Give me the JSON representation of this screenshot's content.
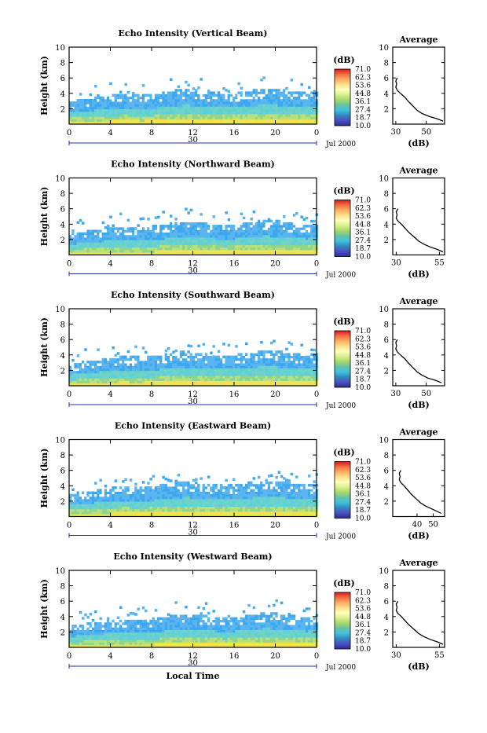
{
  "chart_data": [
    {
      "type": "heatmap",
      "title": "Echo Intensity (Vertical Beam)",
      "ylabel": "Height (km)",
      "x_ticks": [
        "0",
        "4",
        "8",
        "12",
        "16",
        "20",
        "0"
      ],
      "y_ticks": [
        "2",
        "4",
        "6",
        "8",
        "10"
      ],
      "xlim": [
        0,
        24
      ],
      "ylim": [
        0,
        10
      ],
      "date_marker": "30",
      "date_label": "Jul 2000",
      "colorbar": {
        "unit": "(dB)",
        "levels": [
          "71.0",
          "62.3",
          "53.6",
          "44.8",
          "36.1",
          "27.4",
          "18.7",
          "10.0"
        ]
      },
      "cloud_top_km": [
        2.8,
        3.0,
        3.2,
        3.4,
        3.6,
        3.8,
        3.7,
        3.6,
        3.7,
        4.0,
        4.2,
        4.4,
        4.3,
        4.1,
        3.9,
        3.8,
        3.9,
        4.1,
        4.3,
        4.5,
        4.4,
        4.2,
        4.0,
        3.9,
        4.0
      ],
      "average": {
        "title": "Average",
        "xlabel": "(dB)",
        "x_ticks": [
          "30",
          "50"
        ],
        "xlim": [
          28,
          62
        ],
        "profile": {
          "height_km": [
            0.4,
            0.7,
            1.0,
            1.4,
            1.8,
            2.2,
            2.6,
            3.0,
            3.5,
            4.0,
            4.4,
            4.8,
            5.2,
            5.6,
            6.0
          ],
          "db": [
            61,
            57,
            52,
            47,
            44,
            42,
            40,
            38,
            36,
            33,
            31,
            30,
            30.5,
            30,
            31
          ]
        }
      }
    },
    {
      "type": "heatmap",
      "title": "Echo Intensity (Northward Beam)",
      "ylabel": "Height (km)",
      "x_ticks": [
        "0",
        "4",
        "8",
        "12",
        "16",
        "20",
        "0"
      ],
      "y_ticks": [
        "2",
        "4",
        "6",
        "8",
        "10"
      ],
      "xlim": [
        0,
        24
      ],
      "ylim": [
        0,
        10
      ],
      "date_marker": "30",
      "date_label": "Jul 2000",
      "colorbar": {
        "unit": "(dB)",
        "levels": [
          "71.0",
          "62.3",
          "53.6",
          "44.8",
          "36.1",
          "27.4",
          "18.7",
          "10.0"
        ]
      },
      "cloud_top_km": [
        2.6,
        2.8,
        3.0,
        3.2,
        3.4,
        3.6,
        3.5,
        3.5,
        3.6,
        3.8,
        4.0,
        4.2,
        4.1,
        4.0,
        3.8,
        3.7,
        3.8,
        4.0,
        4.2,
        4.4,
        4.3,
        4.1,
        3.9,
        3.8,
        3.9
      ],
      "average": {
        "title": "Average",
        "xlabel": "(dB)",
        "x_ticks": [
          "30",
          "55"
        ],
        "xlim": [
          28,
          58
        ],
        "profile": {
          "height_km": [
            0.4,
            0.7,
            1.0,
            1.4,
            1.8,
            2.2,
            2.6,
            3.0,
            3.5,
            4.0,
            4.4,
            4.8,
            5.2,
            5.6,
            6.0
          ],
          "db": [
            57,
            54,
            50,
            46,
            43,
            41,
            39,
            37,
            35,
            33,
            31,
            30,
            30.5,
            30,
            31
          ]
        }
      }
    },
    {
      "type": "heatmap",
      "title": "Echo Intensity (Southward Beam)",
      "ylabel": "Height (km)",
      "x_ticks": [
        "0",
        "4",
        "8",
        "12",
        "16",
        "20",
        "0"
      ],
      "y_ticks": [
        "2",
        "4",
        "6",
        "8",
        "10"
      ],
      "xlim": [
        0,
        24
      ],
      "ylim": [
        0,
        10
      ],
      "date_marker": "30",
      "date_label": "Jul 2000",
      "colorbar": {
        "unit": "(dB)",
        "levels": [
          "71.0",
          "62.3",
          "53.6",
          "44.8",
          "36.1",
          "27.4",
          "18.7",
          "10.0"
        ]
      },
      "cloud_top_km": [
        2.7,
        2.9,
        3.1,
        3.3,
        3.5,
        3.7,
        3.6,
        3.6,
        3.7,
        3.9,
        4.1,
        4.3,
        4.2,
        4.0,
        3.9,
        3.8,
        3.9,
        4.1,
        4.3,
        4.5,
        4.4,
        4.2,
        4.0,
        3.9,
        4.0
      ],
      "average": {
        "title": "Average",
        "xlabel": "(dB)",
        "x_ticks": [
          "30",
          "50"
        ],
        "xlim": [
          28,
          62
        ],
        "profile": {
          "height_km": [
            0.4,
            0.7,
            1.0,
            1.4,
            1.8,
            2.2,
            2.6,
            3.0,
            3.5,
            4.0,
            4.4,
            4.8,
            5.2,
            5.6,
            6.0
          ],
          "db": [
            60,
            56,
            51,
            47,
            44,
            42,
            40,
            38,
            36,
            33,
            31,
            30,
            30.5,
            30,
            31
          ]
        }
      }
    },
    {
      "type": "heatmap",
      "title": "Echo Intensity (Eastward Beam)",
      "ylabel": "Height (km)",
      "x_ticks": [
        "0",
        "4",
        "8",
        "12",
        "16",
        "20",
        "0"
      ],
      "y_ticks": [
        "2",
        "4",
        "6",
        "8",
        "10"
      ],
      "xlim": [
        0,
        24
      ],
      "ylim": [
        0,
        10
      ],
      "date_marker": "30",
      "date_label": "Jul 2000",
      "colorbar": {
        "unit": "(dB)",
        "levels": [
          "71.0",
          "62.3",
          "53.6",
          "44.8",
          "36.1",
          "27.4",
          "18.7",
          "10.0"
        ]
      },
      "cloud_top_km": [
        2.8,
        3.0,
        3.2,
        3.4,
        3.6,
        3.8,
        3.7,
        3.7,
        3.8,
        4.0,
        4.2,
        4.4,
        4.3,
        4.1,
        4.0,
        3.9,
        4.0,
        4.2,
        4.4,
        4.6,
        4.5,
        4.3,
        4.1,
        4.0,
        4.1
      ],
      "average": {
        "title": "Average",
        "xlabel": "(dB)",
        "x_ticks": [
          "40",
          "50"
        ],
        "xlim": [
          25,
          57
        ],
        "profile": {
          "height_km": [
            0.4,
            0.7,
            1.0,
            1.4,
            1.8,
            2.2,
            2.6,
            3.0,
            3.5,
            4.0,
            4.4,
            4.8,
            5.2,
            5.6,
            6.0
          ],
          "db": [
            55,
            52,
            49,
            45,
            42,
            40,
            38,
            36,
            34,
            32,
            30,
            29,
            29.5,
            29,
            30
          ]
        }
      }
    },
    {
      "type": "heatmap",
      "title": "Echo Intensity (Westward Beam)",
      "ylabel": "Height (km)",
      "xlabel": "Local Time",
      "x_ticks": [
        "0",
        "4",
        "8",
        "12",
        "16",
        "20",
        "0"
      ],
      "y_ticks": [
        "2",
        "4",
        "6",
        "8",
        "10"
      ],
      "xlim": [
        0,
        24
      ],
      "ylim": [
        0,
        10
      ],
      "date_marker": "30",
      "date_label": "Jul 2000",
      "colorbar": {
        "unit": "(dB)",
        "levels": [
          "71.0",
          "62.3",
          "53.6",
          "44.8",
          "36.1",
          "27.4",
          "18.7",
          "10.0"
        ]
      },
      "cloud_top_km": [
        2.6,
        2.8,
        3.0,
        3.2,
        3.4,
        3.6,
        3.5,
        3.5,
        3.6,
        3.8,
        4.0,
        4.2,
        4.1,
        4.0,
        3.8,
        3.7,
        3.8,
        4.0,
        4.2,
        4.4,
        4.3,
        4.1,
        3.9,
        3.8,
        3.9
      ],
      "average": {
        "title": "Average",
        "xlabel": "(dB)",
        "x_ticks": [
          "30",
          "55"
        ],
        "xlim": [
          28,
          58
        ],
        "profile": {
          "height_km": [
            0.4,
            0.7,
            1.0,
            1.4,
            1.8,
            2.2,
            2.6,
            3.0,
            3.5,
            4.0,
            4.4,
            4.8,
            5.2,
            5.6,
            6.0
          ],
          "db": [
            57,
            54,
            50,
            46,
            43,
            41,
            39,
            37,
            35,
            33,
            31,
            30,
            30.5,
            30,
            31
          ]
        }
      }
    }
  ],
  "colors": {
    "colorbar": [
      "#d7191c",
      "#f46d43",
      "#fdae61",
      "#fee08b",
      "#ffffbf",
      "#d9ef8b",
      "#a6d96a",
      "#66c2a5",
      "#3ec1e0",
      "#3288bd",
      "#4a4fc2",
      "#2b2f8f"
    ],
    "echo_low": "#5ab4f0",
    "echo_mid": "#6fd3c8",
    "echo_high": "#f5e04a",
    "axis": "#000000",
    "date_marker": "#2233aa"
  }
}
